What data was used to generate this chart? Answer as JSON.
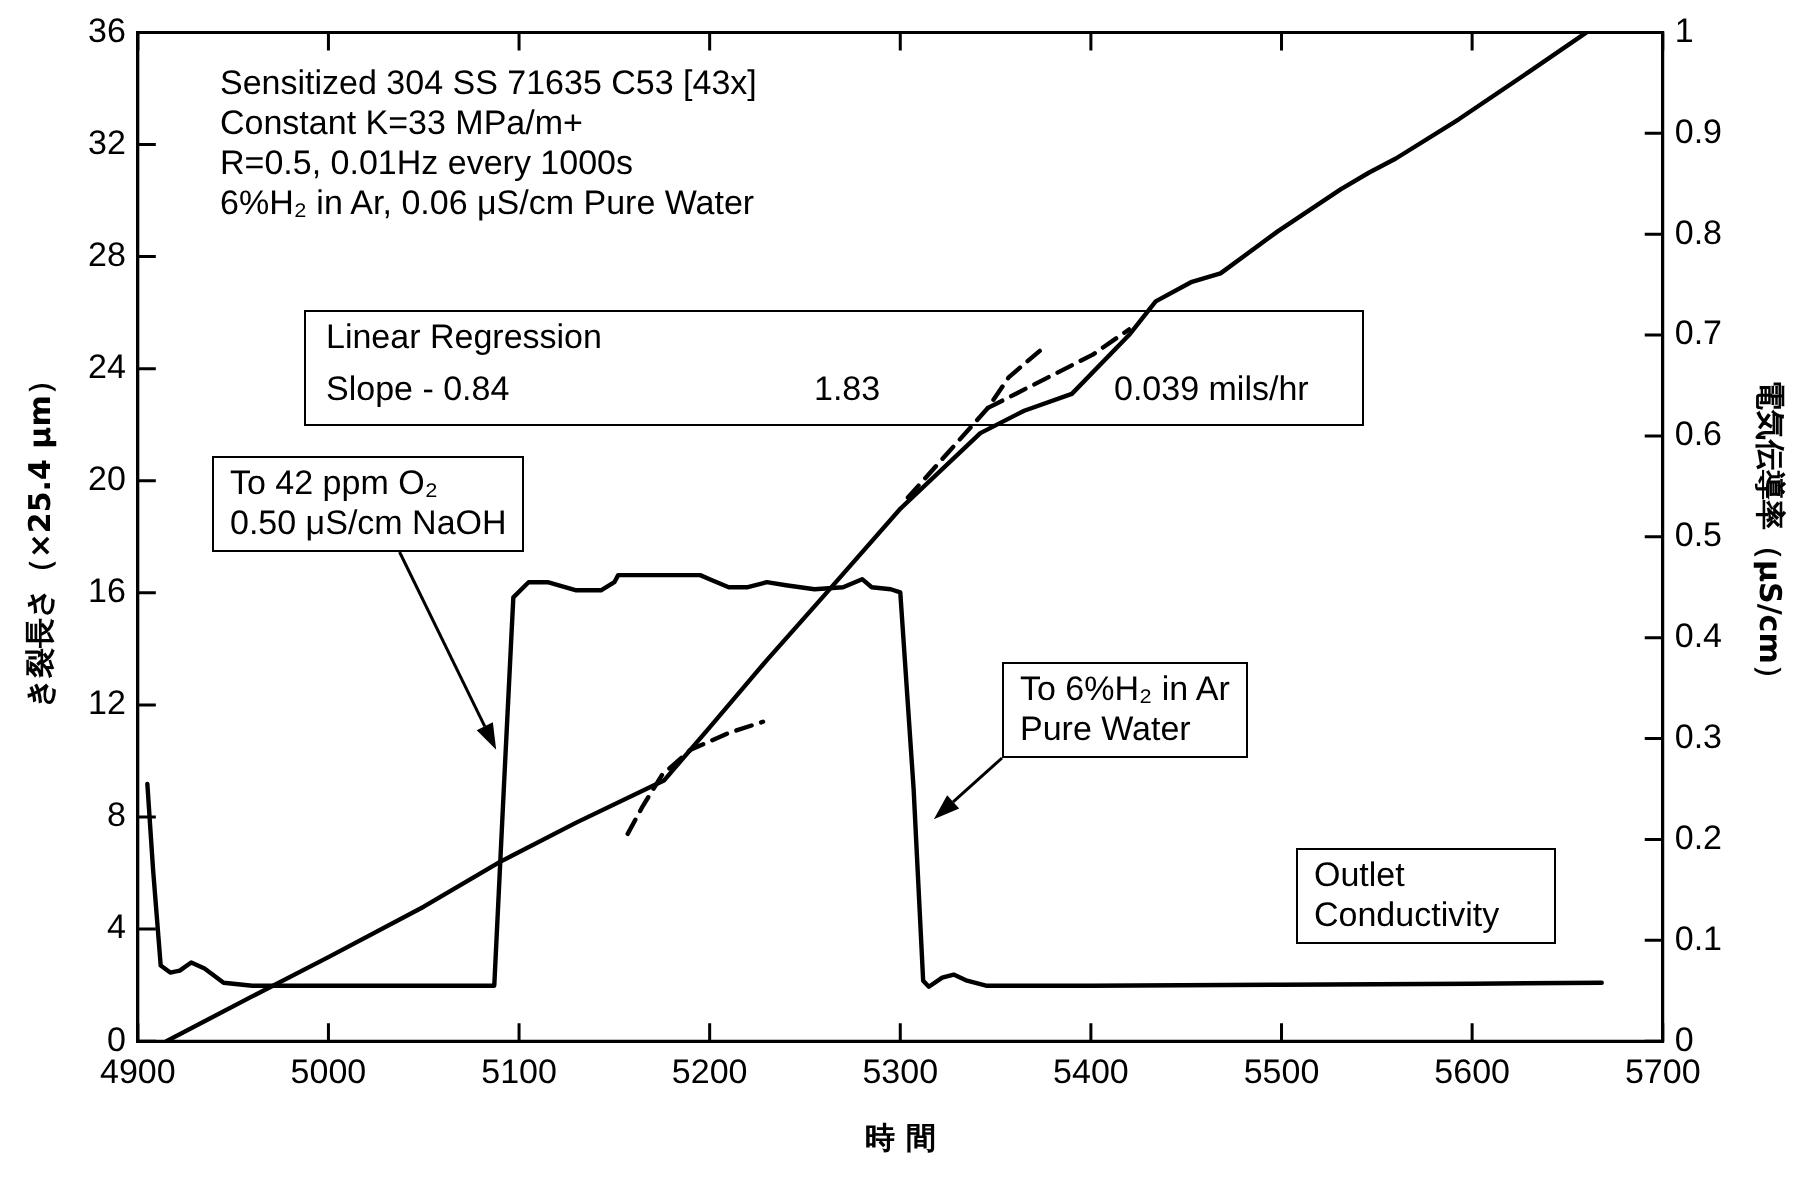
{
  "chart_data": {
    "type": "line",
    "xlabel": "時 間",
    "ylabel": "き裂長さ（×25.4 μm）",
    "y2label": "電気伝導率（μS/cm）",
    "xlim": [
      4900,
      5700
    ],
    "xticks": [
      4900,
      5000,
      5100,
      5200,
      5300,
      5400,
      5500,
      5600,
      5700
    ],
    "ylim": [
      0,
      36
    ],
    "yticks": [
      0,
      4,
      8,
      12,
      16,
      20,
      24,
      28,
      32,
      36
    ],
    "y2lim": [
      0,
      1
    ],
    "y2ticks": [
      0,
      0.1,
      0.2,
      0.3,
      0.4,
      0.5,
      0.6,
      0.7,
      0.8,
      0.9,
      1
    ],
    "grid": false,
    "legend": false,
    "marker": "none",
    "series": [
      {
        "color": "#000000",
        "line_style": "solid",
        "x": [
          4915,
          4960,
          5000,
          5050,
          5090,
          5130,
          5176,
          5200,
          5230,
          5260,
          5300,
          5342,
          5365,
          5390,
          5420,
          5434,
          5453,
          5468,
          5498,
          5531,
          5546,
          5560,
          5593,
          5630,
          5660
        ],
        "values": [
          0,
          1.6,
          3.0,
          4.8,
          6.4,
          7.8,
          9.3,
          11.2,
          13.6,
          15.9,
          19.0,
          21.7,
          22.5,
          23.1,
          25.2,
          26.4,
          27.1,
          27.4,
          28.9,
          30.4,
          31.0,
          31.5,
          32.9,
          34.6,
          36
        ]
      },
      {
        "color": "#000000",
        "line_style": "solid",
        "axis": "y2",
        "x": [
          4905,
          4908,
          4912,
          4917,
          4922,
          4928,
          4935,
          4945,
          4960,
          5000,
          5050,
          5087,
          5092,
          5097,
          5105,
          5115,
          5130,
          5143,
          5150,
          5152,
          5175,
          5195,
          5200,
          5210,
          5220,
          5230,
          5240,
          5255,
          5270,
          5280,
          5285,
          5295,
          5300,
          5307,
          5312,
          5315,
          5322,
          5328,
          5335,
          5345,
          5400,
          5500,
          5600,
          5668
        ],
        "values": [
          0.255,
          0.17,
          0.075,
          0.068,
          0.07,
          0.078,
          0.072,
          0.058,
          0.055,
          0.055,
          0.055,
          0.055,
          0.25,
          0.44,
          0.455,
          0.455,
          0.447,
          0.447,
          0.455,
          0.462,
          0.462,
          0.462,
          0.458,
          0.45,
          0.45,
          0.455,
          0.452,
          0.448,
          0.45,
          0.458,
          0.45,
          0.448,
          0.445,
          0.25,
          0.06,
          0.054,
          0.063,
          0.066,
          0.06,
          0.055,
          0.055,
          0.056,
          0.057,
          0.058
        ]
      },
      {
        "color": "#000000",
        "line_style": "dashed",
        "x": [
          5157,
          5165,
          5175,
          5190,
          5210,
          5228
        ],
        "values": [
          7.4,
          8.4,
          9.5,
          10.4,
          11.0,
          11.4
        ]
      },
      {
        "color": "#000000",
        "line_style": "dashed",
        "x": [
          5304,
          5325,
          5346,
          5357,
          5376
        ],
        "values": [
          19.4,
          21.0,
          22.6,
          23.7,
          24.8
        ]
      },
      {
        "color": "#000000",
        "line_style": "dashed",
        "x": [
          5346,
          5375,
          5401,
          5420
        ],
        "values": [
          22.6,
          23.6,
          24.5,
          25.4
        ]
      }
    ],
    "annotations": [
      "Sensitized 304 SS 71635 C53 [43x]\nConstant K=33 MPa/m+\nR=0.5, 0.01Hz every 1000s\n6%H₂ in Ar, 0.06 μS/cm Pure Water",
      "Linear Regression",
      "Slope - 0.84",
      "1.83",
      "0.039 mils/hr",
      "To 42 ppm O₂\n0.50 μS/cm NaOH",
      "To 6%H₂ in Ar\nPure Water",
      "Outlet Conductivity"
    ]
  }
}
